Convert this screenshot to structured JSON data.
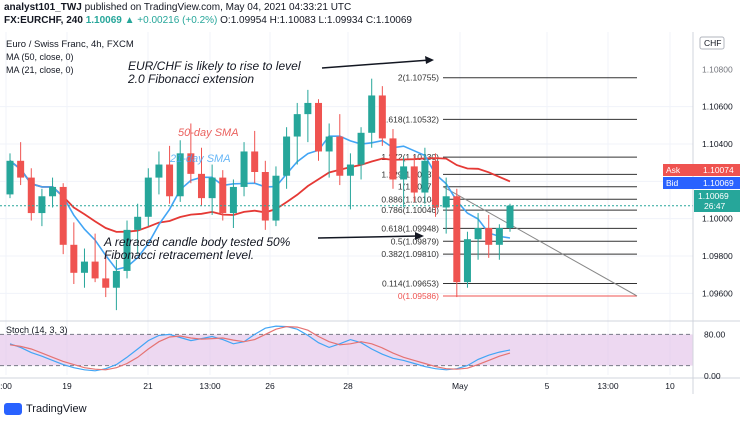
{
  "header": {
    "line1_user": "analyst101_TWJ",
    "line1_rest": "published on TradingView.com, May 04, 2021 04:33:21 UTC",
    "line2_symbol": "FX:EURCHF, 240",
    "line2_price": "1.10069",
    "line2_change": "▲ +0.00216 (+0.2%)",
    "line2_ohlc": "O:1.09954 H:1.10083 L:1.09934 C:1.10069"
  },
  "legend": {
    "title": "Euro / Swiss Franc, 4h, FXCM",
    "ma50": "MA (50, close, 0)",
    "ma21": "MA (21, close, 0)",
    "stoch": "Stoch (14, 3, 3)"
  },
  "currency_badge": "CHF",
  "brand": "TradingView",
  "colors": {
    "up": "#26a69a",
    "down": "#ef5350",
    "ma50": "#e53935",
    "ma21": "#42a5f5",
    "stoch_k": "#42a5f5",
    "stoch_d": "#e57373",
    "stoch_band": "#e1bee7",
    "fib": "#333333",
    "fib_zero": "#ef5350"
  },
  "chart_data": {
    "type": "candlestick",
    "y_axis_ticks": [
      "1.10600",
      "1.10400",
      "1.10200",
      "1.10000",
      "1.09800",
      "1.09600"
    ],
    "top_tick_partial": "1.10800",
    "x_axis_ticks": [
      ":00",
      "19",
      "21",
      "13:00",
      "26",
      "28",
      "May",
      "5",
      "13:00",
      "10"
    ],
    "price_labels": {
      "ask": {
        "label": "Ask",
        "value": "1.10074"
      },
      "bid": {
        "label": "Bid",
        "value": "1.10069"
      },
      "last": {
        "value": "1.10069",
        "countdown": "26:47"
      }
    },
    "fib_levels": [
      {
        "label": "2(1.10755)",
        "value": 1.10755
      },
      {
        "label": "1.618(1.10532)",
        "value": 1.10532
      },
      {
        "label": "1.272(1.10330)",
        "value": 1.1033
      },
      {
        "label": "1.129(1.10237)",
        "value": 1.10237
      },
      {
        "label": "1(1.10171)",
        "value": 1.10171
      },
      {
        "label": "0.886(1.10104)",
        "value": 1.10104
      },
      {
        "label": "0.786(1.10046)",
        "value": 1.10046
      },
      {
        "label": "0.618(1.09948)",
        "value": 1.09948
      },
      {
        "label": "0.5(1.09879)",
        "value": 1.09879
      },
      {
        "label": "0.382(1.09810)",
        "value": 1.0981
      },
      {
        "label": "0.114(1.09653)",
        "value": 1.09653
      },
      {
        "label": "0(1.09586)",
        "value": 1.09586
      }
    ],
    "annotations": {
      "top_text": [
        "EUR/CHF is likely to rise to level",
        "2.0 Fibonacci extension"
      ],
      "bottom_text": [
        "A retraced  candle body tested 50%",
        "Fibonacci retracement level."
      ],
      "ma50_label": "50-day SMA",
      "ma21_label": "21-day SMA"
    },
    "candles": [
      [
        1.1013,
        1.1035,
        1.1011,
        1.1031
      ],
      [
        1.1031,
        1.1041,
        1.1018,
        1.1022
      ],
      [
        1.1022,
        1.1027,
        1.0999,
        1.1003
      ],
      [
        1.1003,
        1.1016,
        1.0996,
        1.1012
      ],
      [
        1.1012,
        1.1022,
        1.1006,
        1.1017
      ],
      [
        1.1017,
        1.1019,
        1.0981,
        1.0986
      ],
      [
        1.0986,
        1.0998,
        1.0965,
        1.0971
      ],
      [
        1.0971,
        1.0984,
        1.0963,
        1.0977
      ],
      [
        1.0977,
        1.0992,
        1.0966,
        1.0968
      ],
      [
        1.0968,
        1.0982,
        1.0958,
        1.0963
      ],
      [
        1.0963,
        1.0978,
        1.0951,
        1.0972
      ],
      [
        1.0972,
        1.0999,
        1.0968,
        1.0994
      ],
      [
        1.0994,
        1.1008,
        1.0981,
        1.1001
      ],
      [
        1.1001,
        1.1027,
        1.0996,
        1.1022
      ],
      [
        1.1022,
        1.1036,
        1.1013,
        1.1029
      ],
      [
        1.1029,
        1.1039,
        1.1008,
        1.1012
      ],
      [
        1.1012,
        1.1042,
        1.1009,
        1.1035
      ],
      [
        1.1035,
        1.1051,
        1.1019,
        1.1024
      ],
      [
        1.1024,
        1.1038,
        1.1007,
        1.1011
      ],
      [
        1.1011,
        1.1029,
        1.1002,
        1.1022
      ],
      [
        1.1022,
        1.1026,
        1.0999,
        1.1003
      ],
      [
        1.1003,
        1.1021,
        1.0995,
        1.1017
      ],
      [
        1.1017,
        1.1041,
        1.1012,
        1.1036
      ],
      [
        1.1036,
        1.1047,
        1.1019,
        1.1025
      ],
      [
        1.1025,
        1.1031,
        1.0994,
        1.0999
      ],
      [
        1.0999,
        1.1028,
        1.0996,
        1.1023
      ],
      [
        1.1023,
        1.1049,
        1.1016,
        1.1044
      ],
      [
        1.1044,
        1.1062,
        1.1029,
        1.1056
      ],
      [
        1.1056,
        1.1069,
        1.1041,
        1.1062
      ],
      [
        1.1062,
        1.1064,
        1.1031,
        1.1036
      ],
      [
        1.1036,
        1.1051,
        1.1022,
        1.1044
      ],
      [
        1.1044,
        1.1056,
        1.1018,
        1.1023
      ],
      [
        1.1023,
        1.1035,
        1.1005,
        1.1029
      ],
      [
        1.1029,
        1.1049,
        1.1021,
        1.1046
      ],
      [
        1.1046,
        1.1075,
        1.1038,
        1.1066
      ],
      [
        1.1066,
        1.1071,
        1.1039,
        1.1043
      ],
      [
        1.1043,
        1.1048,
        1.1016,
        1.1021
      ],
      [
        1.1021,
        1.1033,
        1.1006,
        1.1028
      ],
      [
        1.1028,
        1.1034,
        1.1009,
        1.1014
      ],
      [
        1.1014,
        1.1038,
        1.1008,
        1.1031
      ],
      [
        1.1031,
        1.1035,
        1.1001,
        1.1006
      ],
      [
        1.1006,
        1.1022,
        1.0992,
        1.1012
      ],
      [
        1.1012,
        1.1016,
        1.0958,
        1.0966
      ],
      [
        1.0966,
        1.0993,
        1.0963,
        1.0989
      ],
      [
        1.0989,
        1.1003,
        1.0978,
        1.0995
      ],
      [
        1.0995,
        1.1002,
        1.0979,
        1.0986
      ],
      [
        1.0986,
        1.0997,
        1.0978,
        1.0995
      ],
      [
        1.0995,
        1.1008,
        1.0993,
        1.1007
      ]
    ],
    "stochastic": {
      "levels": [
        80,
        20
      ],
      "tick_labels": [
        "80.00",
        "0.00"
      ],
      "k": [
        62,
        55,
        45,
        38,
        30,
        22,
        16,
        12,
        10,
        14,
        22,
        36,
        52,
        68,
        78,
        80,
        74,
        68,
        72,
        76,
        70,
        62,
        66,
        80,
        92,
        96,
        95,
        90,
        78,
        64,
        55,
        62,
        70,
        64,
        52,
        42,
        34,
        30,
        24,
        18,
        14,
        12,
        14,
        20,
        32,
        40,
        46,
        50
      ],
      "d": [
        60,
        57,
        52,
        44,
        36,
        28,
        22,
        16,
        13,
        12,
        16,
        24,
        36,
        52,
        66,
        75,
        77,
        73,
        71,
        72,
        73,
        69,
        66,
        70,
        80,
        90,
        95,
        94,
        88,
        76,
        66,
        60,
        62,
        66,
        62,
        54,
        44,
        36,
        30,
        24,
        18,
        14,
        13,
        15,
        22,
        30,
        38,
        44
      ]
    }
  }
}
